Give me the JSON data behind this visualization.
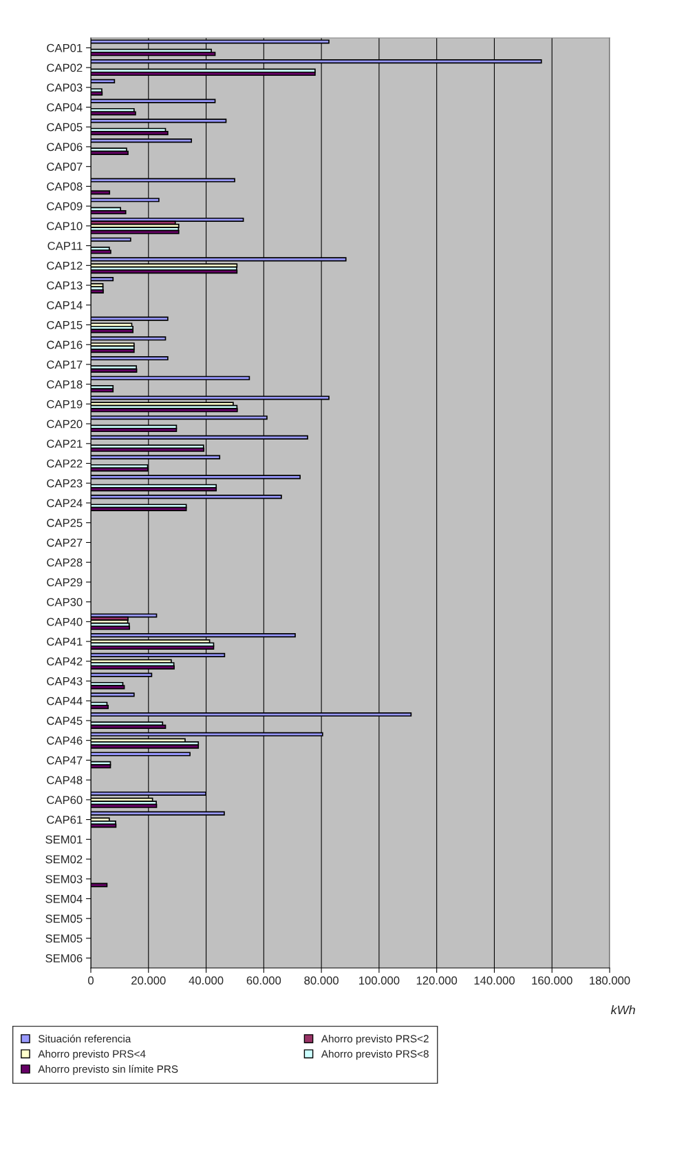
{
  "chart_data": {
    "type": "bar",
    "orientation": "horizontal",
    "xlabel": "kWh",
    "categories": [
      "CAP01",
      "CAP02",
      "CAP03",
      "CAP04",
      "CAP05",
      "CAP06",
      "CAP07",
      "CAP08",
      "CAP09",
      "CAP10",
      "CAP11",
      "CAP12",
      "CAP13",
      "CAP14",
      "CAP15",
      "CAP16",
      "CAP17",
      "CAP18",
      "CAP19",
      "CAP20",
      "CAP21",
      "CAP22",
      "CAP23",
      "CAP24",
      "CAP25",
      "CAP27",
      "CAP28",
      "CAP29",
      "CAP30",
      "CAP40",
      "CAP41",
      "CAP42",
      "CAP43",
      "CAP44",
      "CAP45",
      "CAP46",
      "CAP47",
      "CAP48",
      "CAP60",
      "CAP61",
      "SEM01",
      "SEM02",
      "SEM03",
      "SEM04",
      "SEM05",
      "SEM05",
      "SEM06"
    ],
    "series": [
      {
        "name": "Situación referencia",
        "color": "#9999ff",
        "values": [
          82600,
          156300,
          8200,
          43100,
          46900,
          34900,
          null,
          49900,
          23600,
          52900,
          13800,
          88500,
          7700,
          null,
          26700,
          25900,
          26700,
          55000,
          82600,
          61100,
          75200,
          44700,
          72600,
          66100,
          null,
          null,
          null,
          null,
          null,
          22800,
          70900,
          46400,
          21100,
          15000,
          111100,
          80400,
          34400,
          null,
          39900,
          46300,
          null,
          null,
          null,
          null,
          null,
          null,
          null
        ]
      },
      {
        "name": "Ahorro previsto PRS<2",
        "color": "#993366",
        "values": [
          null,
          null,
          null,
          null,
          null,
          null,
          null,
          null,
          null,
          29300,
          null,
          null,
          null,
          null,
          null,
          null,
          null,
          null,
          null,
          null,
          null,
          null,
          null,
          null,
          null,
          null,
          null,
          null,
          null,
          12900,
          null,
          null,
          null,
          null,
          null,
          null,
          null,
          null,
          null,
          null,
          null,
          null,
          null,
          null,
          null,
          null,
          null
        ]
      },
      {
        "name": "Ahorro previsto PRS<4",
        "color": "#ffffcc",
        "values": [
          null,
          null,
          null,
          null,
          null,
          null,
          null,
          null,
          null,
          30500,
          null,
          50700,
          4200,
          null,
          14200,
          15000,
          null,
          null,
          49400,
          null,
          null,
          null,
          null,
          null,
          null,
          null,
          null,
          null,
          null,
          12800,
          41200,
          27900,
          null,
          null,
          null,
          32700,
          null,
          null,
          21400,
          6400,
          null,
          null,
          null,
          null,
          null,
          null,
          null
        ]
      },
      {
        "name": "Ahorro previsto PRS<8",
        "color": "#ccffff",
        "values": [
          41800,
          77800,
          3800,
          15000,
          25900,
          12400,
          null,
          null,
          10300,
          30400,
          6400,
          50600,
          4200,
          null,
          14600,
          15000,
          15800,
          7700,
          50700,
          29700,
          39100,
          19700,
          43500,
          33100,
          null,
          null,
          null,
          null,
          null,
          13300,
          42600,
          28800,
          11100,
          5600,
          24900,
          37300,
          6800,
          null,
          22700,
          8600,
          null,
          null,
          null,
          null,
          null,
          null,
          null
        ]
      },
      {
        "name": "Ahorro previsto sin límite PRS",
        "color": "#660066",
        "values": [
          43100,
          77800,
          3900,
          15500,
          26700,
          12900,
          null,
          6500,
          12100,
          30500,
          6900,
          50700,
          4300,
          null,
          14600,
          15000,
          15900,
          7700,
          50800,
          29700,
          39200,
          19800,
          43500,
          33100,
          null,
          null,
          null,
          null,
          null,
          13400,
          42600,
          28900,
          11600,
          6000,
          25900,
          37300,
          6800,
          null,
          22800,
          8700,
          null,
          null,
          5600,
          null,
          null,
          null,
          null
        ]
      }
    ],
    "xlim": [
      0,
      180000
    ],
    "xticks": [
      0,
      {
        "value": 20000,
        "label": "20.000"
      },
      {
        "value": 40000,
        "label": "40.000"
      },
      {
        "value": 60000,
        "label": "60.000"
      },
      {
        "value": 80000,
        "label": "80.000"
      },
      {
        "value": 100000,
        "label": "100.000"
      },
      {
        "value": 120000,
        "label": "120.000"
      },
      {
        "value": 140000,
        "label": "140.000"
      },
      {
        "value": 160000,
        "label": "160.000"
      },
      {
        "value": 180000,
        "label": "180.000"
      }
    ],
    "grid": "x",
    "legend": "bottom"
  }
}
